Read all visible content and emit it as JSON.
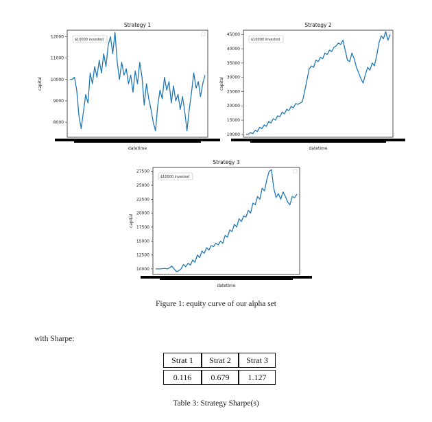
{
  "figure": {
    "caption": "Figure 1: equity curve of our alpha set",
    "charts": [
      {
        "title": "Strategy 1",
        "xlabel": "datetime",
        "ylabel": "capital",
        "legend": "$10000 invested",
        "yticks": [
          8000,
          9000,
          10000,
          11000,
          12000
        ]
      },
      {
        "title": "Strategy 2",
        "xlabel": "datetime",
        "ylabel": "capital",
        "legend": "$10000 invested",
        "yticks": [
          10000,
          15000,
          20000,
          25000,
          30000,
          35000,
          40000,
          45000
        ]
      },
      {
        "title": "Strategy 3",
        "xlabel": "datetime",
        "ylabel": "capital",
        "legend": "$10000 invested",
        "yticks": [
          10000,
          12500,
          15000,
          17500,
          20000,
          22500,
          25000,
          27500
        ]
      }
    ]
  },
  "chart_data": [
    {
      "type": "line",
      "title": "Strategy 1",
      "xlabel": "datetime",
      "ylabel": "capital",
      "ylim": [
        7300,
        12300
      ],
      "legend": "top-left",
      "grid": false,
      "series": [
        {
          "name": "$10000 invested",
          "color": "#1f77b4",
          "y": [
            10000,
            10000,
            10100,
            9500,
            8300,
            7700,
            8500,
            9300,
            8900,
            10300,
            9800,
            10600,
            10100,
            10900,
            10300,
            11200,
            10600,
            11600,
            12000,
            11200,
            12200,
            10800,
            10000,
            10800,
            10200,
            10500,
            9800,
            10200,
            9400,
            10400,
            9800,
            10800,
            10100,
            8800,
            9800,
            9100,
            8600,
            8000,
            7600,
            8800,
            9500,
            9100,
            10100,
            9500,
            9900,
            8900,
            9700,
            9000,
            9300,
            8600,
            9200,
            8500,
            7600,
            8600,
            9400,
            10300,
            9600,
            9900,
            9200,
            9800,
            10200
          ]
        }
      ]
    },
    {
      "type": "line",
      "title": "Strategy 2",
      "xlabel": "datetime",
      "ylabel": "capital",
      "ylim": [
        9000,
        46500
      ],
      "legend": "top-left",
      "grid": false,
      "series": [
        {
          "name": "$10000 invested",
          "color": "#1f77b4",
          "y": [
            10000,
            10100,
            10600,
            10300,
            11400,
            11000,
            12500,
            12000,
            13300,
            12800,
            14500,
            14000,
            15500,
            15000,
            16500,
            16200,
            17800,
            17200,
            18800,
            18300,
            19800,
            19300,
            20800,
            20500,
            21000,
            21500,
            25000,
            29000,
            33000,
            34000,
            33500,
            36000,
            35500,
            37000,
            36500,
            38500,
            38000,
            39500,
            39000,
            40500,
            41000,
            42000,
            41500,
            43000,
            39500,
            36000,
            35500,
            38500,
            36500,
            33500,
            31500,
            29500,
            28000,
            31000,
            33500,
            32500,
            35000,
            34000,
            37500,
            42000,
            44500,
            43500,
            46000,
            43000,
            45000
          ]
        }
      ]
    },
    {
      "type": "line",
      "title": "Strategy 3",
      "xlabel": "datetime",
      "ylabel": "capital",
      "ylim": [
        9000,
        28200
      ],
      "legend": "top-left",
      "grid": false,
      "series": [
        {
          "name": "$10000 invested",
          "color": "#1f77b4",
          "y": [
            10000,
            10000,
            10000,
            10050,
            10100,
            10000,
            10200,
            10500,
            10000,
            9500,
            9700,
            10000,
            10800,
            10400,
            11000,
            10700,
            11600,
            11200,
            12500,
            12000,
            13200,
            12800,
            13800,
            13400,
            14200,
            14000,
            14600,
            14300,
            15000,
            14600,
            16000,
            15700,
            17000,
            16700,
            18000,
            17500,
            19000,
            18500,
            19500,
            19300,
            20500,
            20000,
            21800,
            21500,
            23000,
            22500,
            24500,
            24000,
            26000,
            27500,
            27800,
            24500,
            22800,
            23500,
            22500,
            23800,
            23000,
            22000,
            21500,
            23000,
            22800,
            23400
          ]
        }
      ]
    }
  ],
  "body": {
    "text": "with Sharpe:"
  },
  "table": {
    "headers": [
      "Strat 1",
      "Strat 2",
      "Strat 3"
    ],
    "values": [
      "0.116",
      "0.679",
      "1.127"
    ],
    "caption": "Table 3: Strategy Sharpe(s)"
  }
}
